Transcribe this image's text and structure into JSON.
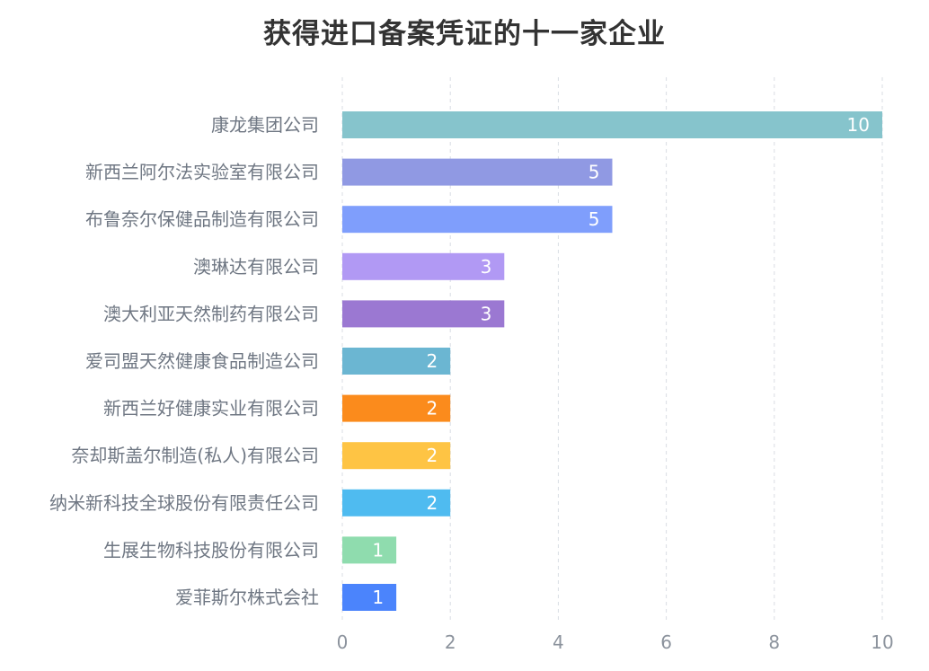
{
  "chart_data": {
    "type": "bar",
    "orientation": "horizontal",
    "title": "获得进口备案凭证的十一家企业",
    "categories": [
      "康龙集团公司",
      "新西兰阿尔法实验室有限公司",
      "布鲁奈尔保健品制造有限公司",
      "澳琳达有限公司",
      "澳大利亚天然制药有限公司",
      "爱司盟天然健康食品制造公司",
      "新西兰好健康实业有限公司",
      "奈却斯盖尔制造(私人)有限公司",
      "纳米新科技全球股份有限责任公司",
      "生展生物科技股份有限公司",
      "爱菲斯尔株式会社"
    ],
    "values": [
      10,
      5,
      5,
      3,
      3,
      2,
      2,
      2,
      2,
      1,
      1
    ],
    "colors": [
      "#86c4cc",
      "#9099e3",
      "#7f9efc",
      "#b199f4",
      "#9b78d2",
      "#6bb6d2",
      "#fb8b1c",
      "#fec444",
      "#4fbbf0",
      "#8fdcae",
      "#4b84fc"
    ],
    "xlim": [
      0,
      10
    ],
    "xticks": [
      0,
      2,
      4,
      6,
      8,
      10
    ],
    "grid": true,
    "data_labels": true
  }
}
